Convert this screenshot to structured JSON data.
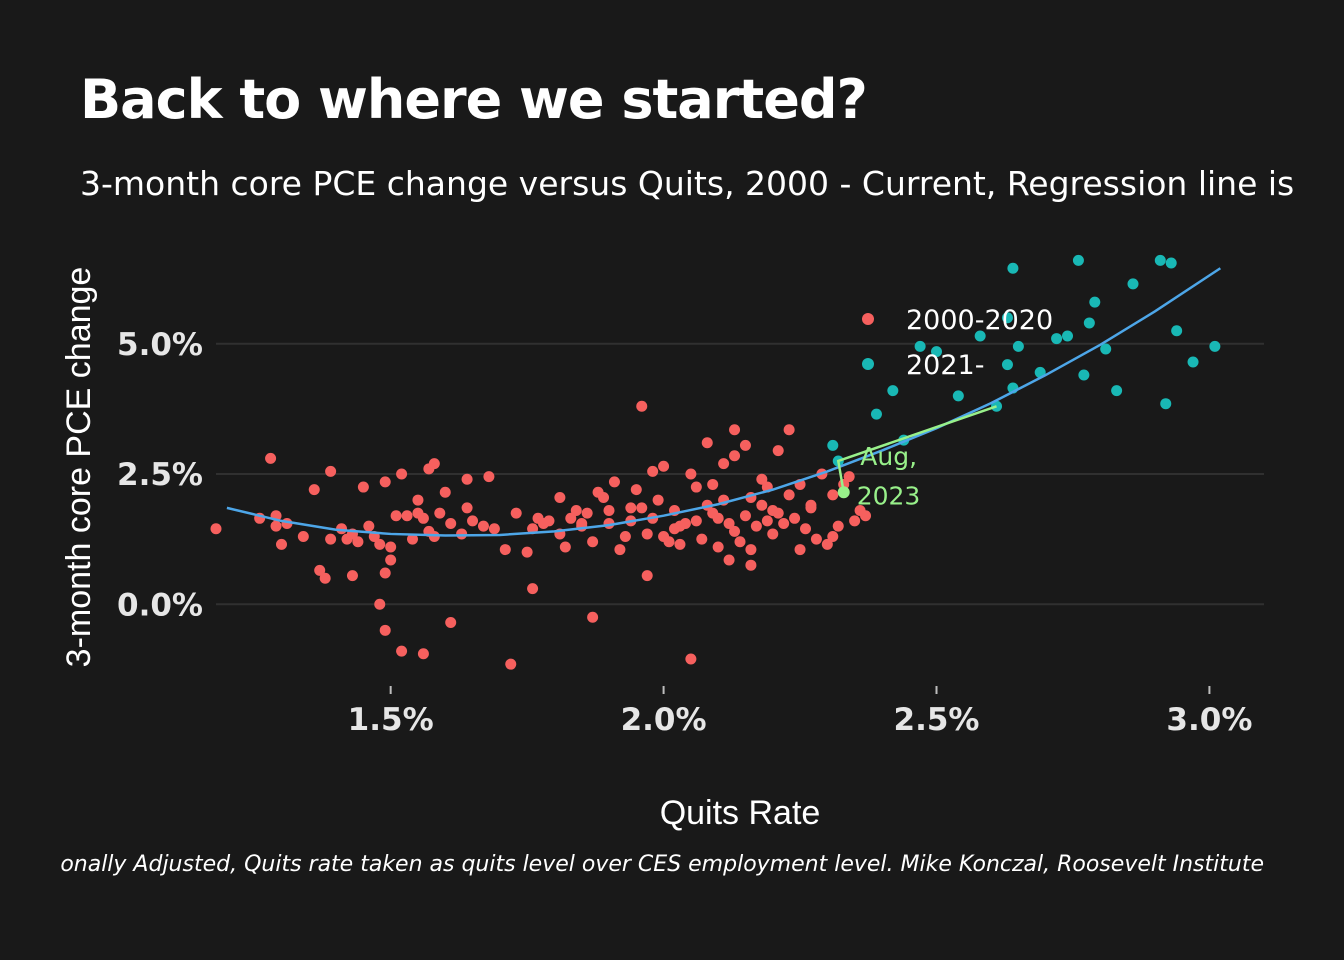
{
  "header": {
    "title": "Back to where we started?",
    "subtitle": "3-month core PCE change versus Quits, 2000 - Current, Regression line is",
    "caption": "onally Adjusted, Quits rate taken as quits level over CES employment level. Mike Konczal, Roosevelt Institute"
  },
  "colors": {
    "background": "#191919",
    "grid": "#303030",
    "series_2000_2020": "#f6605e",
    "series_2021": "#19b8b5",
    "regression": "#4da6e8",
    "annotation": "#98f08a"
  },
  "chart_data": {
    "type": "scatter",
    "xlabel": "Quits Rate",
    "ylabel": "3-month core PCE change",
    "xlim": [
      1.18,
      3.1
    ],
    "ylim": [
      -1.3,
      6.8
    ],
    "x_ticks": [
      {
        "value": 1.5,
        "label": "1.5%"
      },
      {
        "value": 2.0,
        "label": "2.0%"
      },
      {
        "value": 2.5,
        "label": "2.5%"
      },
      {
        "value": 3.0,
        "label": "3.0%"
      }
    ],
    "y_ticks": [
      {
        "value": 0.0,
        "label": "0.0%"
      },
      {
        "value": 2.5,
        "label": "2.5%"
      },
      {
        "value": 5.0,
        "label": "5.0%"
      }
    ],
    "grid": "horizontal",
    "legend_position": "top-right inside plot",
    "series": [
      {
        "name": "2000-2020",
        "color": "#f6605e",
        "points": [
          [
            1.18,
            1.45
          ],
          [
            1.26,
            1.65
          ],
          [
            1.28,
            2.8
          ],
          [
            1.29,
            1.7
          ],
          [
            1.29,
            1.5
          ],
          [
            1.3,
            1.15
          ],
          [
            1.31,
            1.55
          ],
          [
            1.34,
            1.3
          ],
          [
            1.36,
            2.2
          ],
          [
            1.37,
            0.65
          ],
          [
            1.38,
            0.5
          ],
          [
            1.39,
            1.25
          ],
          [
            1.39,
            2.55
          ],
          [
            1.41,
            1.45
          ],
          [
            1.42,
            1.25
          ],
          [
            1.43,
            0.55
          ],
          [
            1.43,
            1.35
          ],
          [
            1.44,
            1.2
          ],
          [
            1.45,
            2.25
          ],
          [
            1.46,
            1.5
          ],
          [
            1.47,
            1.3
          ],
          [
            1.48,
            1.15
          ],
          [
            1.49,
            0.6
          ],
          [
            1.49,
            2.35
          ],
          [
            1.5,
            1.1
          ],
          [
            1.5,
            0.85
          ],
          [
            1.51,
            1.7
          ],
          [
            1.52,
            2.5
          ],
          [
            1.53,
            1.7
          ],
          [
            1.54,
            1.25
          ],
          [
            1.55,
            1.75
          ],
          [
            1.55,
            2.0
          ],
          [
            1.56,
            1.65
          ],
          [
            1.57,
            1.4
          ],
          [
            1.57,
            2.6
          ],
          [
            1.58,
            1.3
          ],
          [
            1.58,
            2.7
          ],
          [
            1.59,
            1.75
          ],
          [
            1.6,
            2.15
          ],
          [
            1.61,
            1.55
          ],
          [
            1.63,
            1.35
          ],
          [
            1.64,
            1.85
          ],
          [
            1.64,
            2.4
          ],
          [
            1.65,
            1.6
          ],
          [
            1.67,
            1.5
          ],
          [
            1.68,
            2.45
          ],
          [
            1.69,
            1.45
          ],
          [
            1.71,
            1.05
          ],
          [
            1.73,
            1.75
          ],
          [
            1.75,
            1.0
          ],
          [
            1.76,
            1.45
          ],
          [
            1.77,
            1.65
          ],
          [
            1.78,
            1.55
          ],
          [
            1.79,
            1.6
          ],
          [
            1.81,
            1.35
          ],
          [
            1.82,
            1.1
          ],
          [
            1.83,
            1.65
          ],
          [
            1.84,
            1.8
          ],
          [
            1.85,
            1.55
          ],
          [
            1.86,
            1.75
          ],
          [
            1.87,
            1.2
          ],
          [
            1.88,
            2.15
          ],
          [
            1.89,
            2.05
          ],
          [
            1.9,
            1.8
          ],
          [
            1.91,
            2.35
          ],
          [
            1.92,
            1.05
          ],
          [
            1.93,
            1.3
          ],
          [
            1.94,
            1.6
          ],
          [
            1.95,
            2.2
          ],
          [
            1.96,
            1.85
          ],
          [
            1.97,
            1.35
          ],
          [
            1.98,
            1.65
          ],
          [
            1.99,
            2.0
          ],
          [
            2.0,
            1.3
          ],
          [
            2.01,
            1.2
          ],
          [
            2.02,
            1.8
          ],
          [
            2.02,
            1.45
          ],
          [
            2.03,
            1.15
          ],
          [
            2.04,
            1.55
          ],
          [
            2.05,
            2.5
          ],
          [
            2.06,
            1.6
          ],
          [
            2.07,
            1.25
          ],
          [
            2.08,
            1.9
          ],
          [
            2.09,
            2.3
          ],
          [
            2.1,
            1.65
          ],
          [
            2.11,
            2.7
          ],
          [
            2.11,
            2.0
          ],
          [
            2.12,
            1.55
          ],
          [
            2.13,
            1.4
          ],
          [
            2.13,
            2.85
          ],
          [
            2.14,
            1.2
          ],
          [
            2.15,
            1.7
          ],
          [
            2.16,
            2.05
          ],
          [
            2.17,
            1.5
          ],
          [
            2.18,
            2.4
          ],
          [
            2.18,
            1.9
          ],
          [
            2.19,
            2.25
          ],
          [
            2.2,
            1.35
          ],
          [
            2.21,
            2.95
          ],
          [
            2.21,
            1.75
          ],
          [
            2.22,
            1.55
          ],
          [
            2.23,
            2.1
          ],
          [
            2.24,
            1.65
          ],
          [
            2.25,
            2.3
          ],
          [
            2.26,
            1.45
          ],
          [
            2.27,
            1.9
          ],
          [
            2.28,
            1.25
          ],
          [
            2.29,
            2.5
          ],
          [
            2.3,
            1.15
          ],
          [
            2.31,
            2.1
          ],
          [
            2.32,
            1.5
          ],
          [
            2.33,
            2.3
          ],
          [
            2.35,
            1.6
          ],
          [
            2.36,
            1.8
          ],
          [
            2.37,
            1.7
          ],
          [
            1.48,
            0.0
          ],
          [
            1.49,
            -0.5
          ],
          [
            1.52,
            -0.9
          ],
          [
            1.56,
            -0.95
          ],
          [
            1.61,
            -0.35
          ],
          [
            1.72,
            -1.15
          ],
          [
            1.76,
            0.3
          ],
          [
            1.87,
            -0.25
          ],
          [
            2.05,
            -1.05
          ],
          [
            1.96,
            3.8
          ],
          [
            2.13,
            3.35
          ],
          [
            2.23,
            3.35
          ],
          [
            2.0,
            2.65
          ],
          [
            2.08,
            3.1
          ],
          [
            2.15,
            3.05
          ],
          [
            1.81,
            2.05
          ],
          [
            1.85,
            1.5
          ],
          [
            1.9,
            1.55
          ],
          [
            1.94,
            1.85
          ],
          [
            2.03,
            1.5
          ],
          [
            2.09,
            1.75
          ],
          [
            2.16,
            1.05
          ],
          [
            2.19,
            1.6
          ],
          [
            2.25,
            1.05
          ],
          [
            2.31,
            1.3
          ],
          [
            2.34,
            2.45
          ],
          [
            2.12,
            0.85
          ],
          [
            1.97,
            0.55
          ],
          [
            2.16,
            0.75
          ],
          [
            1.98,
            2.55
          ],
          [
            2.06,
            2.25
          ],
          [
            2.1,
            1.1
          ],
          [
            2.2,
            1.8
          ],
          [
            2.27,
            1.85
          ]
        ]
      },
      {
        "name": "2021-",
        "color": "#19b8b5",
        "points": [
          [
            2.31,
            3.05
          ],
          [
            2.32,
            2.75
          ],
          [
            2.39,
            3.65
          ],
          [
            2.42,
            4.1
          ],
          [
            2.44,
            3.15
          ],
          [
            2.47,
            4.95
          ],
          [
            2.5,
            4.85
          ],
          [
            2.54,
            4.0
          ],
          [
            2.58,
            5.15
          ],
          [
            2.61,
            3.8
          ],
          [
            2.63,
            4.6
          ],
          [
            2.64,
            4.15
          ],
          [
            2.65,
            4.95
          ],
          [
            2.63,
            5.5
          ],
          [
            2.64,
            6.45
          ],
          [
            2.69,
            4.45
          ],
          [
            2.72,
            5.1
          ],
          [
            2.74,
            5.15
          ],
          [
            2.76,
            6.6
          ],
          [
            2.77,
            4.4
          ],
          [
            2.78,
            5.4
          ],
          [
            2.79,
            5.8
          ],
          [
            2.81,
            4.9
          ],
          [
            2.83,
            4.1
          ],
          [
            2.86,
            6.15
          ],
          [
            2.91,
            6.6
          ],
          [
            2.92,
            3.85
          ],
          [
            2.93,
            6.55
          ],
          [
            2.94,
            5.25
          ],
          [
            2.97,
            4.65
          ],
          [
            3.01,
            4.95
          ]
        ]
      }
    ],
    "regression": {
      "name": "Regression line",
      "color": "#4da6e8",
      "points": [
        [
          1.2,
          1.85
        ],
        [
          1.3,
          1.6
        ],
        [
          1.4,
          1.43
        ],
        [
          1.5,
          1.35
        ],
        [
          1.6,
          1.32
        ],
        [
          1.7,
          1.33
        ],
        [
          1.8,
          1.4
        ],
        [
          1.9,
          1.52
        ],
        [
          2.0,
          1.7
        ],
        [
          2.1,
          1.92
        ],
        [
          2.2,
          2.2
        ],
        [
          2.3,
          2.55
        ],
        [
          2.4,
          2.95
        ],
        [
          2.5,
          3.38
        ],
        [
          2.6,
          3.86
        ],
        [
          2.7,
          4.4
        ],
        [
          2.8,
          4.98
        ],
        [
          2.9,
          5.62
        ],
        [
          3.02,
          6.45
        ]
      ]
    },
    "annotation": {
      "text_line1": "Aug,",
      "text_line2": "2023",
      "color": "#98f08a",
      "path": [
        [
          2.33,
          2.15
        ],
        [
          2.32,
          2.75
        ],
        [
          2.61,
          3.8
        ]
      ],
      "current_point": [
        2.33,
        2.15
      ]
    }
  }
}
